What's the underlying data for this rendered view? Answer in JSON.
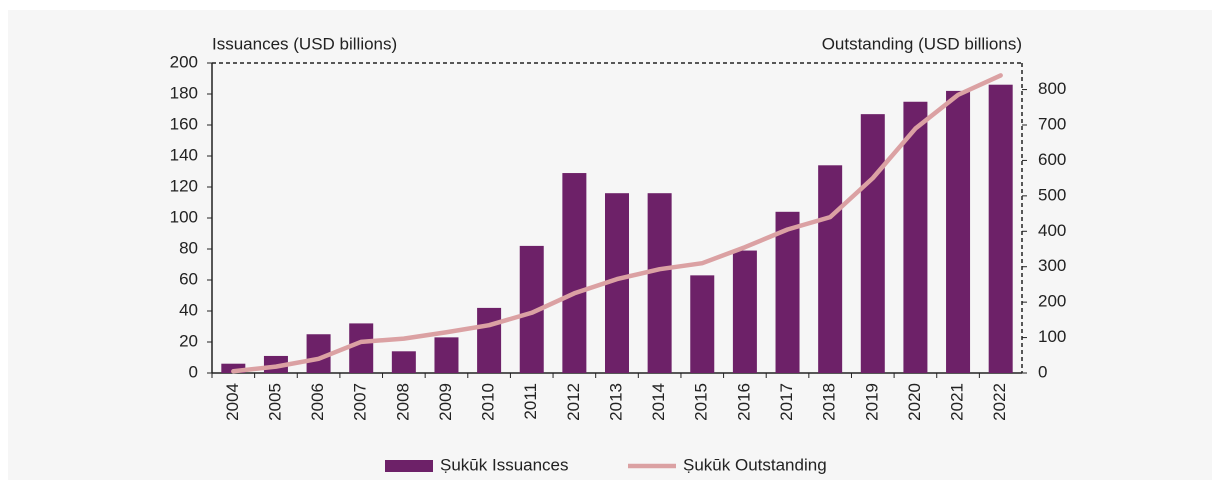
{
  "chart_data": {
    "type": "bar_line",
    "y_label": "Issuances (USD billions)",
    "y2_label": "Outstanding (USD billions)",
    "categories": [
      "2004",
      "2005",
      "2006",
      "2007",
      "2008",
      "2009",
      "2010",
      "2011",
      "2012",
      "2013",
      "2014",
      "2015",
      "2016",
      "2017",
      "2018",
      "2019",
      "2020",
      "2021",
      "2022"
    ],
    "series": [
      {
        "name": "Ṣukūk Issuances",
        "type": "bar",
        "color": "#6d2168",
        "values": [
          6,
          11,
          25,
          32,
          14,
          23,
          42,
          82,
          129,
          116,
          116,
          63,
          79,
          104,
          134,
          167,
          175,
          182,
          186
        ]
      },
      {
        "name": "Ṣukūk Outstanding",
        "type": "line",
        "axis": "y2",
        "color": "#dba1a3",
        "values": [
          5,
          18,
          40,
          88,
          97,
          115,
          135,
          170,
          225,
          265,
          293,
          310,
          355,
          405,
          440,
          550,
          690,
          785,
          840
        ]
      }
    ],
    "ylim": [
      0,
      200
    ],
    "yticks": [
      0,
      20,
      40,
      60,
      80,
      100,
      120,
      140,
      160,
      180,
      200
    ],
    "y2lim": [
      0,
      875
    ],
    "y2ticks": [
      0,
      100,
      200,
      300,
      400,
      500,
      600,
      700,
      800
    ],
    "legend": "bottom"
  }
}
